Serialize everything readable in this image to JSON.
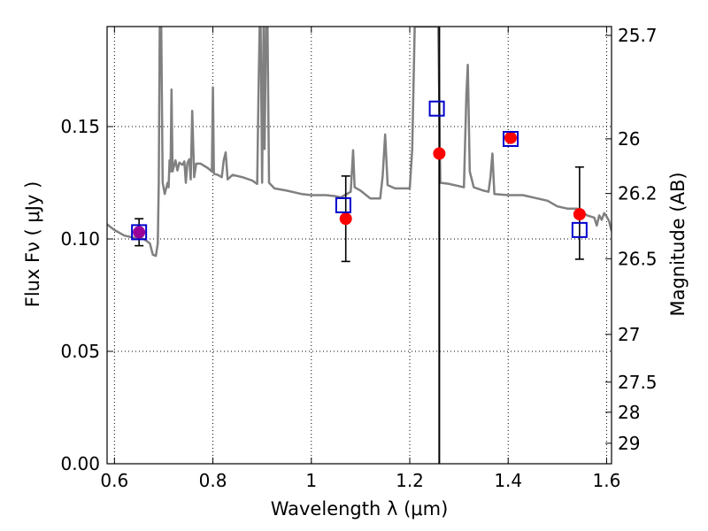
{
  "chart_data": {
    "type": "scatter",
    "xlabel": "Wavelength  λ (μm)",
    "ylabel": "Flux  Fν ( μJy )",
    "ylabel_right": "Magnitude (AB)",
    "xlim": [
      0.585,
      1.61
    ],
    "ylim": [
      0.0,
      0.1945
    ],
    "x_ticks": [
      {
        "value": 0.6,
        "label": "0.6"
      },
      {
        "value": 0.8,
        "label": "0.8"
      },
      {
        "value": 1.0,
        "label": "1"
      },
      {
        "value": 1.2,
        "label": "1.2"
      },
      {
        "value": 1.4,
        "label": "1.4"
      },
      {
        "value": 1.6,
        "label": "1.6"
      }
    ],
    "y_ticks": [
      {
        "value": 0.0,
        "label": "0.00"
      },
      {
        "value": 0.05,
        "label": "0.05"
      },
      {
        "value": 0.1,
        "label": "0.10"
      },
      {
        "value": 0.15,
        "label": "0.15"
      }
    ],
    "right_ticks": [
      {
        "mag": 25.7,
        "label": "25.7"
      },
      {
        "mag": 26.0,
        "label": "26"
      },
      {
        "mag": 26.2,
        "label": "26.2"
      },
      {
        "mag": 26.5,
        "label": "26.5"
      },
      {
        "mag": 27.0,
        "label": "27"
      },
      {
        "mag": 27.5,
        "label": "27.5"
      },
      {
        "mag": 28.0,
        "label": "28"
      },
      {
        "mag": 29.0,
        "label": "29"
      }
    ],
    "grid": true,
    "vertical_line_x": 1.26,
    "colors": {
      "model": "#808080",
      "observed": "#ff0000",
      "model_photometry": "#0000cc",
      "error_bar": "#000000",
      "overlap_marker": "#990099"
    },
    "model_spectrum": [
      [
        0.585,
        0.1065
      ],
      [
        0.6,
        0.104
      ],
      [
        0.62,
        0.1015
      ],
      [
        0.64,
        0.1005
      ],
      [
        0.66,
        0.1
      ],
      [
        0.672,
        0.098
      ],
      [
        0.678,
        0.093
      ],
      [
        0.684,
        0.0925
      ],
      [
        0.688,
        0.098
      ],
      [
        0.69,
        0.125
      ],
      [
        0.692,
        0.1945
      ],
      [
        0.695,
        0.1945
      ],
      [
        0.698,
        0.125
      ],
      [
        0.702,
        0.12
      ],
      [
        0.708,
        0.125
      ],
      [
        0.71,
        0.123
      ],
      [
        0.712,
        0.135
      ],
      [
        0.714,
        0.13
      ],
      [
        0.716,
        0.1665
      ],
      [
        0.718,
        0.13
      ],
      [
        0.724,
        0.135
      ],
      [
        0.728,
        0.1305
      ],
      [
        0.732,
        0.134
      ],
      [
        0.738,
        0.133
      ],
      [
        0.742,
        0.1345
      ],
      [
        0.745,
        0.125
      ],
      [
        0.748,
        0.1335
      ],
      [
        0.752,
        0.1355
      ],
      [
        0.755,
        0.1265
      ],
      [
        0.758,
        0.157
      ],
      [
        0.762,
        0.1275
      ],
      [
        0.766,
        0.1335
      ],
      [
        0.775,
        0.1335
      ],
      [
        0.79,
        0.1315
      ],
      [
        0.798,
        0.13
      ],
      [
        0.8,
        0.1675
      ],
      [
        0.802,
        0.129
      ],
      [
        0.81,
        0.1285
      ],
      [
        0.818,
        0.1275
      ],
      [
        0.822,
        0.135
      ],
      [
        0.826,
        0.1385
      ],
      [
        0.83,
        0.1265
      ],
      [
        0.84,
        0.1285
      ],
      [
        0.86,
        0.1275
      ],
      [
        0.88,
        0.126
      ],
      [
        0.89,
        0.1245
      ],
      [
        0.893,
        0.17
      ],
      [
        0.895,
        0.1945
      ],
      [
        0.897,
        0.1945
      ],
      [
        0.9,
        0.125
      ],
      [
        0.903,
        0.1945
      ],
      [
        0.905,
        0.14
      ],
      [
        0.908,
        0.1945
      ],
      [
        0.911,
        0.1945
      ],
      [
        0.914,
        0.125
      ],
      [
        0.925,
        0.1225
      ],
      [
        0.95,
        0.1215
      ],
      [
        0.98,
        0.12
      ],
      [
        1.0,
        0.1195
      ],
      [
        1.03,
        0.1195
      ],
      [
        1.05,
        0.119
      ],
      [
        1.06,
        0.1185
      ],
      [
        1.08,
        0.121
      ],
      [
        1.085,
        0.1395
      ],
      [
        1.088,
        0.123
      ],
      [
        1.1,
        0.1215
      ],
      [
        1.12,
        0.118
      ],
      [
        1.14,
        0.118
      ],
      [
        1.145,
        0.128
      ],
      [
        1.15,
        0.1465
      ],
      [
        1.155,
        0.124
      ],
      [
        1.17,
        0.1225
      ],
      [
        1.19,
        0.1225
      ],
      [
        1.2,
        0.1225
      ],
      [
        1.205,
        0.14
      ],
      [
        1.21,
        0.1945
      ],
      [
        1.258,
        0.1945
      ],
      [
        1.262,
        0.125
      ],
      [
        1.28,
        0.1245
      ],
      [
        1.3,
        0.1235
      ],
      [
        1.31,
        0.123
      ],
      [
        1.315,
        0.1645
      ],
      [
        1.318,
        0.1775
      ],
      [
        1.322,
        0.13
      ],
      [
        1.33,
        0.123
      ],
      [
        1.35,
        0.1215
      ],
      [
        1.36,
        0.121
      ],
      [
        1.364,
        0.1275
      ],
      [
        1.368,
        0.138
      ],
      [
        1.372,
        0.12
      ],
      [
        1.4,
        0.1195
      ],
      [
        1.43,
        0.1195
      ],
      [
        1.46,
        0.118
      ],
      [
        1.48,
        0.117
      ],
      [
        1.5,
        0.1145
      ],
      [
        1.52,
        0.1135
      ],
      [
        1.54,
        0.1135
      ],
      [
        1.56,
        0.1105
      ],
      [
        1.575,
        0.1095
      ],
      [
        1.58,
        0.106
      ],
      [
        1.585,
        0.1105
      ],
      [
        1.59,
        0.1085
      ],
      [
        1.595,
        0.1115
      ],
      [
        1.6,
        0.11
      ],
      [
        1.605,
        0.108
      ],
      [
        1.61,
        0.1035
      ]
    ],
    "observed_points": [
      {
        "x": 0.65,
        "y": 0.103,
        "yerr_low": 0.097,
        "yerr_high": 0.109
      },
      {
        "x": 1.07,
        "y": 0.109,
        "yerr_low": 0.09,
        "yerr_high": 0.128
      },
      {
        "x": 1.26,
        "y": 0.138,
        "yerr_low": null,
        "yerr_high": null
      },
      {
        "x": 1.405,
        "y": 0.145,
        "yerr_low": null,
        "yerr_high": null
      },
      {
        "x": 1.545,
        "y": 0.111,
        "yerr_low": 0.091,
        "yerr_high": 0.132
      }
    ],
    "model_photometry_points": [
      {
        "x": 0.65,
        "y": 0.103
      },
      {
        "x": 1.065,
        "y": 0.115
      },
      {
        "x": 1.255,
        "y": 0.158
      },
      {
        "x": 1.405,
        "y": 0.1445
      },
      {
        "x": 1.545,
        "y": 0.104
      }
    ]
  }
}
